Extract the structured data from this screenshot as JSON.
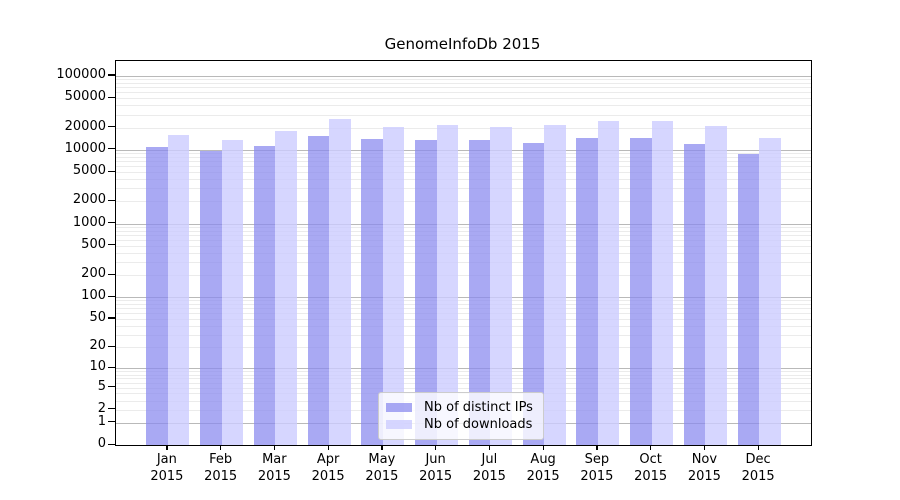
{
  "chart_data": {
    "type": "bar",
    "title": "GenomeInfoDb 2015",
    "xlabel": "",
    "ylabel": "",
    "y_scale": "log10(1+value)",
    "grid": "horizontal major and minor log gridlines",
    "legend_position": "inside bottom-center",
    "year": "2015",
    "months": [
      "Jan",
      "Feb",
      "Mar",
      "Apr",
      "May",
      "Jun",
      "Jul",
      "Aug",
      "Sep",
      "Oct",
      "Nov",
      "Dec"
    ],
    "categories": [
      "Jan 2015",
      "Feb 2015",
      "Mar 2015",
      "Apr 2015",
      "May 2015",
      "Jun 2015",
      "Jul 2015",
      "Aug 2015",
      "Sep 2015",
      "Oct 2015",
      "Nov 2015",
      "Dec 2015"
    ],
    "series": [
      {
        "name": "Nb of distinct IPs",
        "color": "#8888ee",
        "values": [
          10800,
          9500,
          11400,
          15500,
          13800,
          13400,
          13700,
          12400,
          14300,
          14300,
          12000,
          8800
        ]
      },
      {
        "name": "Nb of downloads",
        "color": "#ccccff",
        "values": [
          16000,
          13400,
          18000,
          26400,
          20500,
          21600,
          20300,
          21500,
          24800,
          24600,
          21000,
          14300
        ]
      }
    ],
    "yticks": [
      0,
      1,
      2,
      5,
      10,
      20,
      50,
      100,
      200,
      500,
      1000,
      2000,
      5000,
      10000,
      20000,
      50000,
      100000
    ],
    "ylim": [
      0,
      160000
    ],
    "colors": {
      "major_gridline": "#b9b9b9",
      "minor_gridline": "#ebebeb",
      "axis": "#000000"
    }
  }
}
